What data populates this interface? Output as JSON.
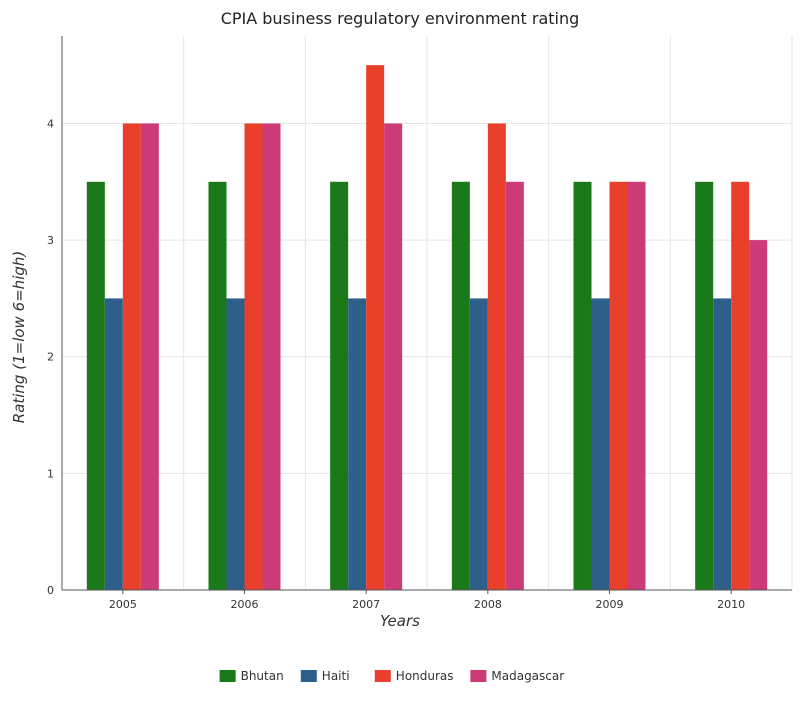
{
  "chart_data": {
    "type": "bar",
    "title": "CPIA business regulatory environment rating",
    "xlabel": "Years",
    "ylabel": "Rating (1=low 6=high)",
    "categories": [
      "2005",
      "2006",
      "2007",
      "2008",
      "2009",
      "2010"
    ],
    "ylim": [
      0,
      4.75
    ],
    "yticks": [
      "0",
      "1",
      "2",
      "3",
      "4"
    ],
    "grid": true,
    "legend_position": "bottom-center",
    "series": [
      {
        "name": "Bhutan",
        "color": "#1a7a1a",
        "values": [
          3.5,
          3.5,
          3.5,
          3.5,
          3.5,
          3.5
        ]
      },
      {
        "name": "Haiti",
        "color": "#2e5f8a",
        "values": [
          2.5,
          2.5,
          2.5,
          2.5,
          2.5,
          2.5
        ]
      },
      {
        "name": "Honduras",
        "color": "#e8402a",
        "values": [
          4.0,
          4.0,
          4.5,
          4.0,
          3.5,
          3.5
        ]
      },
      {
        "name": "Madagascar",
        "color": "#cc3a77",
        "values": [
          4.0,
          4.0,
          4.0,
          3.5,
          3.5,
          3.0
        ]
      }
    ]
  }
}
